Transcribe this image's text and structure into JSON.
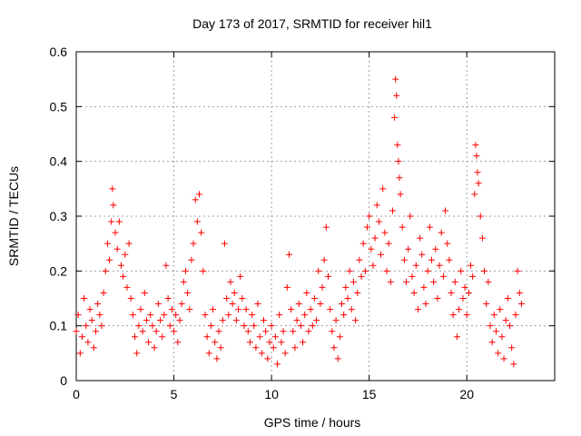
{
  "chart_data": {
    "type": "scatter",
    "title": "Day 173 of 2017, SRMTID for receiver hil1",
    "xlabel": "GPS time / hours",
    "ylabel": "SRMTID / TECUs",
    "xlim": [
      0,
      24.5
    ],
    "ylim": [
      0,
      0.6
    ],
    "x_ticks": [
      0,
      5,
      10,
      15,
      20
    ],
    "y_ticks": [
      0,
      0.1,
      0.2,
      0.3,
      0.4,
      0.5,
      0.6
    ],
    "grid": true,
    "marker": "+",
    "colors": {
      "points": "#ff0000",
      "grid": "#a0a0a0",
      "axes": "#000000"
    },
    "series": [
      {
        "name": "SRMTID",
        "points": [
          [
            0.0,
            0.09
          ],
          [
            0.1,
            0.12
          ],
          [
            0.2,
            0.05
          ],
          [
            0.3,
            0.08
          ],
          [
            0.4,
            0.15
          ],
          [
            0.5,
            0.1
          ],
          [
            0.6,
            0.07
          ],
          [
            0.7,
            0.13
          ],
          [
            0.8,
            0.11
          ],
          [
            0.9,
            0.06
          ],
          [
            1.0,
            0.09
          ],
          [
            1.1,
            0.14
          ],
          [
            1.2,
            0.12
          ],
          [
            1.3,
            0.1
          ],
          [
            1.4,
            0.16
          ],
          [
            1.5,
            0.2
          ],
          [
            1.6,
            0.25
          ],
          [
            1.7,
            0.22
          ],
          [
            1.8,
            0.29
          ],
          [
            1.85,
            0.35
          ],
          [
            1.9,
            0.32
          ],
          [
            2.0,
            0.27
          ],
          [
            2.1,
            0.24
          ],
          [
            2.2,
            0.29
          ],
          [
            2.3,
            0.21
          ],
          [
            2.4,
            0.19
          ],
          [
            2.5,
            0.23
          ],
          [
            2.6,
            0.17
          ],
          [
            2.7,
            0.25
          ],
          [
            2.8,
            0.15
          ],
          [
            2.9,
            0.12
          ],
          [
            3.0,
            0.08
          ],
          [
            3.1,
            0.05
          ],
          [
            3.2,
            0.1
          ],
          [
            3.3,
            0.13
          ],
          [
            3.4,
            0.09
          ],
          [
            3.5,
            0.16
          ],
          [
            3.6,
            0.11
          ],
          [
            3.7,
            0.07
          ],
          [
            3.8,
            0.12
          ],
          [
            3.9,
            0.1
          ],
          [
            4.0,
            0.06
          ],
          [
            4.1,
            0.09
          ],
          [
            4.2,
            0.14
          ],
          [
            4.3,
            0.11
          ],
          [
            4.4,
            0.08
          ],
          [
            4.5,
            0.12
          ],
          [
            4.6,
            0.21
          ],
          [
            4.7,
            0.15
          ],
          [
            4.8,
            0.1
          ],
          [
            4.9,
            0.13
          ],
          [
            5.0,
            0.09
          ],
          [
            5.1,
            0.12
          ],
          [
            5.2,
            0.07
          ],
          [
            5.3,
            0.11
          ],
          [
            5.4,
            0.14
          ],
          [
            5.5,
            0.18
          ],
          [
            5.6,
            0.2
          ],
          [
            5.7,
            0.16
          ],
          [
            5.8,
            0.13
          ],
          [
            5.9,
            0.22
          ],
          [
            6.0,
            0.25
          ],
          [
            6.1,
            0.33
          ],
          [
            6.2,
            0.29
          ],
          [
            6.3,
            0.34
          ],
          [
            6.4,
            0.27
          ],
          [
            6.5,
            0.2
          ],
          [
            6.6,
            0.12
          ],
          [
            6.7,
            0.08
          ],
          [
            6.8,
            0.05
          ],
          [
            6.9,
            0.1
          ],
          [
            7.0,
            0.13
          ],
          [
            7.1,
            0.07
          ],
          [
            7.2,
            0.04
          ],
          [
            7.3,
            0.09
          ],
          [
            7.4,
            0.06
          ],
          [
            7.5,
            0.11
          ],
          [
            7.6,
            0.25
          ],
          [
            7.7,
            0.15
          ],
          [
            7.8,
            0.12
          ],
          [
            7.9,
            0.18
          ],
          [
            8.0,
            0.14
          ],
          [
            8.1,
            0.16
          ],
          [
            8.2,
            0.11
          ],
          [
            8.3,
            0.13
          ],
          [
            8.4,
            0.19
          ],
          [
            8.5,
            0.15
          ],
          [
            8.6,
            0.1
          ],
          [
            8.7,
            0.13
          ],
          [
            8.8,
            0.09
          ],
          [
            8.9,
            0.07
          ],
          [
            9.0,
            0.12
          ],
          [
            9.1,
            0.1
          ],
          [
            9.2,
            0.06
          ],
          [
            9.3,
            0.14
          ],
          [
            9.4,
            0.08
          ],
          [
            9.5,
            0.05
          ],
          [
            9.6,
            0.11
          ],
          [
            9.7,
            0.09
          ],
          [
            9.8,
            0.04
          ],
          [
            9.9,
            0.07
          ],
          [
            10.0,
            0.1
          ],
          [
            10.1,
            0.06
          ],
          [
            10.2,
            0.08
          ],
          [
            10.3,
            0.03
          ],
          [
            10.4,
            0.12
          ],
          [
            10.5,
            0.07
          ],
          [
            10.6,
            0.09
          ],
          [
            10.7,
            0.05
          ],
          [
            10.8,
            0.17
          ],
          [
            10.9,
            0.23
          ],
          [
            11.0,
            0.13
          ],
          [
            11.1,
            0.09
          ],
          [
            11.2,
            0.06
          ],
          [
            11.3,
            0.11
          ],
          [
            11.4,
            0.14
          ],
          [
            11.5,
            0.1
          ],
          [
            11.6,
            0.07
          ],
          [
            11.7,
            0.12
          ],
          [
            11.8,
            0.16
          ],
          [
            11.9,
            0.09
          ],
          [
            12.0,
            0.13
          ],
          [
            12.1,
            0.1
          ],
          [
            12.2,
            0.15
          ],
          [
            12.3,
            0.11
          ],
          [
            12.4,
            0.2
          ],
          [
            12.5,
            0.14
          ],
          [
            12.6,
            0.17
          ],
          [
            12.7,
            0.22
          ],
          [
            12.8,
            0.28
          ],
          [
            12.9,
            0.19
          ],
          [
            13.0,
            0.13
          ],
          [
            13.1,
            0.09
          ],
          [
            13.2,
            0.06
          ],
          [
            13.3,
            0.11
          ],
          [
            13.4,
            0.04
          ],
          [
            13.5,
            0.08
          ],
          [
            13.6,
            0.14
          ],
          [
            13.7,
            0.12
          ],
          [
            13.8,
            0.17
          ],
          [
            13.9,
            0.15
          ],
          [
            14.0,
            0.2
          ],
          [
            14.1,
            0.13
          ],
          [
            14.2,
            0.18
          ],
          [
            14.3,
            0.11
          ],
          [
            14.4,
            0.16
          ],
          [
            14.5,
            0.22
          ],
          [
            14.6,
            0.19
          ],
          [
            14.7,
            0.25
          ],
          [
            14.8,
            0.2
          ],
          [
            14.9,
            0.28
          ],
          [
            15.0,
            0.3
          ],
          [
            15.1,
            0.24
          ],
          [
            15.2,
            0.21
          ],
          [
            15.3,
            0.26
          ],
          [
            15.4,
            0.32
          ],
          [
            15.5,
            0.29
          ],
          [
            15.6,
            0.23
          ],
          [
            15.7,
            0.35
          ],
          [
            15.8,
            0.27
          ],
          [
            15.9,
            0.2
          ],
          [
            16.0,
            0.25
          ],
          [
            16.1,
            0.18
          ],
          [
            16.2,
            0.31
          ],
          [
            16.3,
            0.48
          ],
          [
            16.35,
            0.55
          ],
          [
            16.4,
            0.52
          ],
          [
            16.45,
            0.43
          ],
          [
            16.5,
            0.4
          ],
          [
            16.55,
            0.37
          ],
          [
            16.6,
            0.34
          ],
          [
            16.7,
            0.28
          ],
          [
            16.8,
            0.22
          ],
          [
            16.9,
            0.18
          ],
          [
            17.0,
            0.24
          ],
          [
            17.1,
            0.3
          ],
          [
            17.2,
            0.19
          ],
          [
            17.3,
            0.16
          ],
          [
            17.4,
            0.21
          ],
          [
            17.5,
            0.13
          ],
          [
            17.6,
            0.26
          ],
          [
            17.7,
            0.23
          ],
          [
            17.8,
            0.17
          ],
          [
            17.9,
            0.14
          ],
          [
            18.0,
            0.2
          ],
          [
            18.1,
            0.28
          ],
          [
            18.2,
            0.22
          ],
          [
            18.3,
            0.18
          ],
          [
            18.4,
            0.24
          ],
          [
            18.5,
            0.15
          ],
          [
            18.6,
            0.21
          ],
          [
            18.7,
            0.27
          ],
          [
            18.8,
            0.19
          ],
          [
            18.9,
            0.31
          ],
          [
            19.0,
            0.25
          ],
          [
            19.1,
            0.22
          ],
          [
            19.2,
            0.16
          ],
          [
            19.3,
            0.12
          ],
          [
            19.4,
            0.18
          ],
          [
            19.5,
            0.08
          ],
          [
            19.6,
            0.13
          ],
          [
            19.7,
            0.2
          ],
          [
            19.8,
            0.15
          ],
          [
            19.9,
            0.17
          ],
          [
            20.0,
            0.12
          ],
          [
            20.1,
            0.16
          ],
          [
            20.2,
            0.21
          ],
          [
            20.3,
            0.19
          ],
          [
            20.4,
            0.34
          ],
          [
            20.45,
            0.43
          ],
          [
            20.5,
            0.41
          ],
          [
            20.55,
            0.38
          ],
          [
            20.6,
            0.36
          ],
          [
            20.7,
            0.3
          ],
          [
            20.8,
            0.26
          ],
          [
            20.9,
            0.2
          ],
          [
            21.0,
            0.14
          ],
          [
            21.1,
            0.18
          ],
          [
            21.2,
            0.1
          ],
          [
            21.3,
            0.07
          ],
          [
            21.4,
            0.12
          ],
          [
            21.5,
            0.09
          ],
          [
            21.6,
            0.05
          ],
          [
            21.7,
            0.13
          ],
          [
            21.8,
            0.08
          ],
          [
            21.9,
            0.04
          ],
          [
            22.0,
            0.11
          ],
          [
            22.1,
            0.15
          ],
          [
            22.2,
            0.1
          ],
          [
            22.3,
            0.06
          ],
          [
            22.4,
            0.03
          ],
          [
            22.5,
            0.12
          ],
          [
            22.6,
            0.2
          ],
          [
            22.7,
            0.16
          ],
          [
            22.8,
            0.14
          ]
        ]
      }
    ]
  }
}
